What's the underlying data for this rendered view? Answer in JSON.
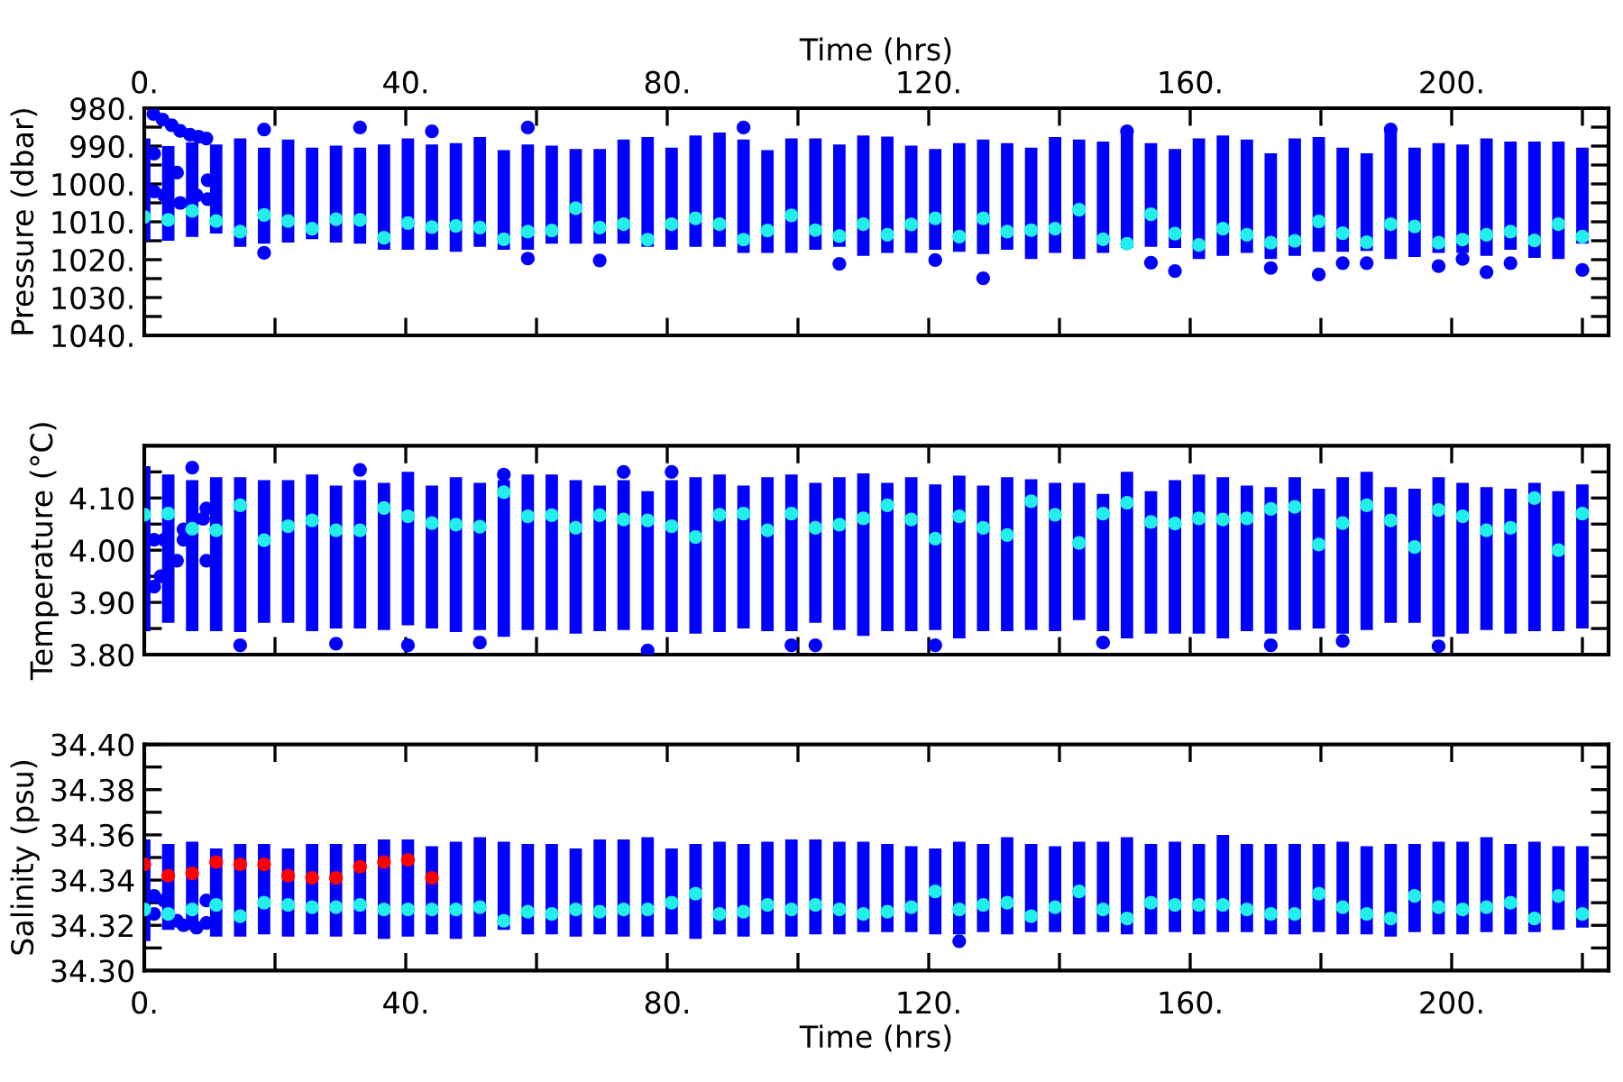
{
  "chart_data": [
    {
      "type": "bar",
      "ylabel": "Pressure (dbar)",
      "x2label": "Time (hrs)",
      "x": [
        0,
        3.67,
        7.33,
        11,
        14.67,
        18.33,
        22,
        25.67,
        29.33,
        33,
        36.67,
        40.33,
        44,
        47.67,
        51.33,
        55,
        58.67,
        62.33,
        66,
        69.67,
        73.33,
        77,
        80.67,
        84.33,
        88,
        91.67,
        95.33,
        99,
        102.67,
        106.33,
        110,
        113.67,
        117.33,
        121,
        124.67,
        128.33,
        132,
        135.67,
        139.33,
        143,
        146.67,
        150.33,
        154,
        157.67,
        161.33,
        165,
        168.67,
        172.33,
        176,
        179.67,
        183.33,
        187,
        190.67,
        194.33,
        198,
        201.67,
        205.33,
        209,
        212.67,
        216.33,
        220
      ],
      "xlim": [
        0,
        224
      ],
      "ylim": [
        1040,
        980
      ],
      "xticks": [
        {
          "value": 0,
          "label": null
        },
        {
          "value": 20,
          "label": null
        },
        {
          "value": 40,
          "label": null
        },
        {
          "value": 60,
          "label": null
        },
        {
          "value": 80,
          "label": null
        },
        {
          "value": 100,
          "label": null
        },
        {
          "value": 120,
          "label": null
        },
        {
          "value": 140,
          "label": null
        },
        {
          "value": 160,
          "label": null
        },
        {
          "value": 180,
          "label": null
        },
        {
          "value": 200,
          "label": null
        },
        {
          "value": 220,
          "label": null
        }
      ],
      "x2lim": [
        0,
        224
      ],
      "tick_labels": "y",
      "x2ticks": [
        {
          "value": 0,
          "label": "0."
        },
        {
          "value": 20,
          "label": null
        },
        {
          "value": 40,
          "label": "40."
        },
        {
          "value": 60,
          "label": null
        },
        {
          "value": 80,
          "label": "80."
        },
        {
          "value": 100,
          "label": null
        },
        {
          "value": 120,
          "label": "120."
        },
        {
          "value": 140,
          "label": null
        },
        {
          "value": 160,
          "label": "160."
        },
        {
          "value": 180,
          "label": null
        },
        {
          "value": 200,
          "label": "200."
        },
        {
          "value": 220,
          "label": null
        }
      ],
      "yticks": [
        {
          "value": 980,
          "label": "980."
        },
        {
          "value": 985,
          "label": null
        },
        {
          "value": 990,
          "label": "990."
        },
        {
          "value": 995,
          "label": null
        },
        {
          "value": 1000,
          "label": "1000."
        },
        {
          "value": 1005,
          "label": null
        },
        {
          "value": 1010,
          "label": "1010."
        },
        {
          "value": 1015,
          "label": null
        },
        {
          "value": 1020,
          "label": "1020."
        },
        {
          "value": 1025,
          "label": null
        },
        {
          "value": 1030,
          "label": "1030."
        },
        {
          "value": 1035,
          "label": null
        },
        {
          "value": 1040,
          "label": "1040."
        }
      ],
      "marker": "circle",
      "series": [
        {
          "color": "#0000ff",
          "base": [
            988,
            990,
            989,
            989.6,
            988.0,
            990.4,
            988.3,
            990.4,
            989.9,
            990.4,
            989.6,
            988.0,
            989.6,
            989.2,
            987.6,
            991.1,
            989.6,
            989.9,
            990.8,
            990.8,
            988.3,
            987.6,
            990.4,
            987.2,
            986.4,
            988.3,
            991.1,
            988.0,
            988.0,
            989.6,
            987.2,
            987.5,
            989.9,
            990.8,
            989.2,
            988.3,
            989.2,
            990.4,
            987.6,
            988.3,
            988.8,
            985.6,
            989.2,
            990.8,
            988.0,
            987.2,
            988.3,
            991.9,
            988.0,
            987.6,
            990.4,
            991.9,
            986.4,
            990.4,
            989.2,
            989.6,
            988.0,
            988.8,
            988.8,
            988.8,
            990.4
          ],
          "values": [
            27,
            25,
            25,
            23.5,
            28.6,
            25.4,
            27.2,
            24.2,
            25.6,
            25.4,
            27.8,
            29.4,
            27.8,
            28.7,
            29.0,
            26.3,
            27.8,
            25.9,
            25.0,
            25.0,
            27.5,
            29.0,
            27.0,
            29.4,
            30.2,
            29.9,
            27.1,
            30.2,
            29.4,
            27.0,
            31.8,
            30.7,
            28.3,
            26.6,
            28.7,
            30.2,
            28.2,
            29.4,
            30.6,
            31.5,
            29.4,
            31.3,
            27.4,
            26.1,
            31.8,
            31.8,
            29.9,
            27.9,
            31.0,
            30.3,
            27.5,
            25.8,
            33.4,
            28.9,
            29.0,
            28.6,
            31.0,
            28.6,
            30.7,
            31.0,
            25.4
          ]
        },
        {
          "type": "scatter",
          "color": "#0000ff",
          "x": [
            1.4,
            2.8,
            4.2,
            5.5,
            7,
            8.3,
            9.5,
            9.7,
            9.7,
            1.5,
            3,
            5.5,
            8,
            1.5,
            5,
            18.33,
            33,
            44,
            58.67,
            91.67,
            150.33,
            190.67,
            18.33,
            58.67,
            69.67,
            106.33,
            121,
            128.33,
            154,
            157.67,
            172.33,
            179.67,
            183.33,
            187,
            198,
            201.67,
            205.33,
            209,
            220
          ],
          "values": [
            981.5,
            983,
            984.5,
            986,
            987,
            987.5,
            988,
            999,
            1004,
            1002,
            1003,
            1005,
            1003,
            992,
            997,
            985.6,
            985.1,
            986.1,
            985.1,
            985.1,
            986.1,
            985.6,
            1018.2,
            1019.7,
            1020.2,
            1021.1,
            1020.1,
            1024.9,
            1020.8,
            1023.0,
            1022.2,
            1023.9,
            1020.9,
            1020.9,
            1021.7,
            1019.8,
            1023.3,
            1020.9,
            1022.7
          ]
        },
        {
          "type": "scatter",
          "color": "#22eeee",
          "values": [
            1008.7,
            1009.5,
            1007.1,
            1009.8,
            1012.6,
            1008.2,
            1009.8,
            1011.8,
            1009.3,
            1009.5,
            1014.2,
            1010.3,
            1011.4,
            1011.1,
            1011.5,
            1014.6,
            1012.6,
            1012.3,
            1006.4,
            1011.5,
            1010.6,
            1014.7,
            1010.6,
            1009.1,
            1010.6,
            1014.7,
            1012.3,
            1008.3,
            1012.2,
            1013.8,
            1010.6,
            1013.4,
            1010.7,
            1009.1,
            1013.9,
            1009.1,
            1012.6,
            1012.2,
            1011.8,
            1006.8,
            1014.6,
            1015.8,
            1008.0,
            1013.1,
            1016.1,
            1011.8,
            1013.4,
            1015.5,
            1015.0,
            1009.9,
            1013.0,
            1015.4,
            1010.6,
            1011.2,
            1015.5,
            1014.7,
            1013.4,
            1012.6,
            1014.9,
            1010.6,
            1013.9
          ]
        }
      ]
    },
    {
      "type": "bar",
      "ylabel": "Temperature (°C)",
      "x": [
        0,
        3.67,
        7.33,
        11,
        14.67,
        18.33,
        22,
        25.67,
        29.33,
        33,
        36.67,
        40.33,
        44,
        47.67,
        51.33,
        55,
        58.67,
        62.33,
        66,
        69.67,
        73.33,
        77,
        80.67,
        84.33,
        88,
        91.67,
        95.33,
        99,
        102.67,
        106.33,
        110,
        113.67,
        117.33,
        121,
        124.67,
        128.33,
        132,
        135.67,
        139.33,
        143,
        146.67,
        150.33,
        154,
        157.67,
        161.33,
        165,
        168.67,
        172.33,
        176,
        179.67,
        183.33,
        187,
        190.67,
        194.33,
        198,
        201.67,
        205.33,
        209,
        212.67,
        216.33,
        220
      ],
      "xlim": [
        0,
        224
      ],
      "ylim": [
        3.8,
        4.2
      ],
      "tick_labels": "y",
      "xticks": [
        {
          "value": 0,
          "label": null
        },
        {
          "value": 20,
          "label": null
        },
        {
          "value": 40,
          "label": null
        },
        {
          "value": 60,
          "label": null
        },
        {
          "value": 80,
          "label": null
        },
        {
          "value": 100,
          "label": null
        },
        {
          "value": 120,
          "label": null
        },
        {
          "value": 140,
          "label": null
        },
        {
          "value": 160,
          "label": null
        },
        {
          "value": 180,
          "label": null
        },
        {
          "value": 200,
          "label": null
        },
        {
          "value": 220,
          "label": null
        }
      ],
      "yticks": [
        {
          "value": 3.8,
          "label": "3.80"
        },
        {
          "value": 3.85,
          "label": null
        },
        {
          "value": 3.9,
          "label": "3.90"
        },
        {
          "value": 3.95,
          "label": null
        },
        {
          "value": 4.0,
          "label": "4.00"
        },
        {
          "value": 4.05,
          "label": null
        },
        {
          "value": 4.1,
          "label": "4.10"
        },
        {
          "value": 4.15,
          "label": null
        },
        {
          "value": 4.2,
          "label": null
        }
      ],
      "marker": "circle",
      "series": [
        {
          "color": "#0000ff",
          "base": [
            3.845,
            3.861,
            3.845,
            3.845,
            3.843,
            3.861,
            3.861,
            3.845,
            3.85,
            3.85,
            3.847,
            3.856,
            3.85,
            3.843,
            3.847,
            3.834,
            3.847,
            3.847,
            3.84,
            3.845,
            3.847,
            3.847,
            3.843,
            3.84,
            3.843,
            3.85,
            3.845,
            3.845,
            3.861,
            3.847,
            3.836,
            3.845,
            3.845,
            3.847,
            3.831,
            3.845,
            3.845,
            3.847,
            3.845,
            3.866,
            3.845,
            3.831,
            3.84,
            3.84,
            3.84,
            3.831,
            3.845,
            3.84,
            3.847,
            3.85,
            3.84,
            3.847,
            3.861,
            3.861,
            3.834,
            3.84,
            3.847,
            3.84,
            3.845,
            3.845,
            3.85
          ],
          "values": [
            0.316,
            0.284,
            0.289,
            0.295,
            0.297,
            0.273,
            0.273,
            0.3,
            0.274,
            0.284,
            0.282,
            0.294,
            0.274,
            0.297,
            0.282,
            0.3,
            0.298,
            0.298,
            0.294,
            0.279,
            0.287,
            0.266,
            0.291,
            0.3,
            0.302,
            0.274,
            0.295,
            0.3,
            0.268,
            0.293,
            0.311,
            0.284,
            0.295,
            0.279,
            0.312,
            0.279,
            0.295,
            0.289,
            0.284,
            0.263,
            0.263,
            0.319,
            0.273,
            0.294,
            0.305,
            0.309,
            0.279,
            0.281,
            0.293,
            0.268,
            0.3,
            0.303,
            0.26,
            0.257,
            0.306,
            0.289,
            0.274,
            0.278,
            0.284,
            0.268,
            0.276
          ]
        },
        {
          "type": "scatter",
          "color": "#0000ff",
          "x": [
            1.5,
            2.5,
            4,
            5,
            6,
            7,
            9,
            9.5,
            9.5,
            1.5,
            3,
            6,
            7.33,
            33,
            55,
            80.67,
            73.33,
            14.67,
            29.33,
            40.33,
            51.33,
            77,
            99,
            102.67,
            121,
            146.67,
            172.33,
            183.33,
            198
          ],
          "values": [
            3.93,
            3.95,
            null,
            3.98,
            4.02,
            null,
            4.06,
            4.08,
            3.98,
            4.02,
            4.02,
            4.04,
            4.158,
            4.154,
            4.145,
            4.15,
            4.15,
            3.818,
            3.821,
            3.818,
            3.823,
            3.808,
            3.818,
            3.818,
            3.818,
            3.823,
            3.818,
            3.826,
            3.816
          ]
        },
        {
          "type": "scatter",
          "color": "#22eeee",
          "values": [
            4.068,
            4.07,
            4.041,
            4.038,
            4.086,
            4.019,
            4.046,
            4.057,
            4.038,
            4.038,
            4.081,
            4.065,
            4.052,
            4.049,
            4.045,
            4.111,
            4.065,
            4.067,
            4.043,
            4.067,
            4.059,
            4.057,
            4.046,
            4.025,
            4.068,
            4.07,
            4.038,
            4.07,
            4.043,
            4.049,
            4.061,
            4.086,
            4.059,
            4.022,
            4.065,
            4.043,
            4.029,
            4.094,
            4.068,
            4.014,
            4.07,
            4.091,
            4.054,
            4.051,
            4.061,
            4.059,
            4.061,
            4.079,
            4.083,
            4.011,
            4.052,
            4.086,
            4.057,
            4.006,
            4.077,
            4.065,
            4.038,
            4.043,
            4.1,
            4.0,
            4.07
          ]
        }
      ]
    },
    {
      "type": "bar",
      "ylabel": "Salinity (psu)",
      "xlabel": "Time (hrs)",
      "x": [
        0,
        3.67,
        7.33,
        11,
        14.67,
        18.33,
        22,
        25.67,
        29.33,
        33,
        36.67,
        40.33,
        44,
        47.67,
        51.33,
        55,
        58.67,
        62.33,
        66,
        69.67,
        73.33,
        77,
        80.67,
        84.33,
        88,
        91.67,
        95.33,
        99,
        102.67,
        106.33,
        110,
        113.67,
        117.33,
        121,
        124.67,
        128.33,
        132,
        135.67,
        139.33,
        143,
        146.67,
        150.33,
        154,
        157.67,
        161.33,
        165,
        168.67,
        172.33,
        176,
        179.67,
        183.33,
        187,
        190.67,
        194.33,
        198,
        201.67,
        205.33,
        209,
        212.67,
        216.33,
        220
      ],
      "xlim": [
        0,
        224
      ],
      "ylim": [
        34.3,
        34.4
      ],
      "xticks": [
        {
          "value": 0,
          "label": "0."
        },
        {
          "value": 20,
          "label": null
        },
        {
          "value": 40,
          "label": "40."
        },
        {
          "value": 60,
          "label": null
        },
        {
          "value": 80,
          "label": "80."
        },
        {
          "value": 100,
          "label": null
        },
        {
          "value": 120,
          "label": "120."
        },
        {
          "value": 140,
          "label": null
        },
        {
          "value": 160,
          "label": "160."
        },
        {
          "value": 180,
          "label": null
        },
        {
          "value": 200,
          "label": "200."
        },
        {
          "value": 220,
          "label": null
        }
      ],
      "yticks": [
        {
          "value": 34.3,
          "label": "34.30"
        },
        {
          "value": 34.31,
          "label": null
        },
        {
          "value": 34.32,
          "label": "34.32"
        },
        {
          "value": 34.33,
          "label": null
        },
        {
          "value": 34.34,
          "label": "34.34"
        },
        {
          "value": 34.35,
          "label": null
        },
        {
          "value": 34.36,
          "label": "34.36"
        },
        {
          "value": 34.37,
          "label": null
        },
        {
          "value": 34.38,
          "label": "34.38"
        },
        {
          "value": 34.39,
          "label": null
        },
        {
          "value": 34.4,
          "label": "34.40"
        }
      ],
      "marker": "circle",
      "series": [
        {
          "color": "#0000ff",
          "base": [
            34.313,
            34.318,
            34.318,
            34.315,
            34.315,
            34.316,
            34.315,
            34.316,
            34.315,
            34.316,
            34.314,
            34.315,
            34.316,
            34.314,
            34.315,
            34.318,
            34.316,
            34.316,
            34.315,
            34.316,
            34.315,
            34.315,
            34.316,
            34.314,
            34.316,
            34.315,
            34.316,
            34.315,
            34.316,
            34.316,
            34.317,
            34.317,
            34.317,
            34.316,
            34.316,
            34.317,
            34.316,
            34.317,
            34.317,
            34.316,
            34.317,
            34.316,
            34.316,
            34.317,
            34.316,
            34.317,
            34.317,
            34.316,
            34.316,
            34.317,
            34.316,
            34.316,
            34.315,
            34.317,
            34.316,
            34.316,
            34.317,
            34.316,
            34.317,
            34.318,
            34.319
          ],
          "values": [
            0.045,
            0.038,
            0.039,
            0.039,
            0.041,
            0.04,
            0.039,
            0.04,
            0.041,
            0.04,
            0.044,
            0.043,
            0.039,
            0.043,
            0.044,
            0.039,
            0.04,
            0.04,
            0.039,
            0.042,
            0.043,
            0.044,
            0.038,
            0.042,
            0.041,
            0.041,
            0.041,
            0.043,
            0.042,
            0.041,
            0.04,
            0.039,
            0.038,
            0.038,
            0.041,
            0.039,
            0.043,
            0.039,
            0.038,
            0.041,
            0.04,
            0.043,
            0.04,
            0.04,
            0.04,
            0.043,
            0.039,
            0.04,
            0.04,
            0.039,
            0.041,
            0.039,
            0.041,
            0.039,
            0.041,
            0.041,
            0.042,
            0.04,
            0.04,
            0.037,
            0.036
          ]
        },
        {
          "type": "scatter",
          "color": "#0000ff",
          "x": [
            1.5,
            3,
            5,
            6,
            8,
            9.5,
            9.5,
            1.5,
            124.67
          ],
          "values": [
            34.333,
            34.331,
            34.322,
            34.32,
            34.319,
            34.321,
            34.331,
            34.325,
            34.313
          ]
        },
        {
          "type": "scatter",
          "color": "#22eeee",
          "values": [
            34.327,
            34.325,
            34.327,
            34.329,
            34.324,
            34.33,
            34.329,
            34.328,
            34.328,
            34.329,
            34.327,
            34.327,
            34.327,
            34.327,
            34.328,
            34.322,
            34.326,
            34.325,
            34.327,
            34.326,
            34.327,
            34.327,
            34.33,
            34.334,
            34.325,
            34.326,
            34.329,
            34.327,
            34.329,
            34.327,
            34.325,
            34.326,
            34.328,
            34.335,
            34.327,
            34.329,
            34.33,
            34.324,
            34.328,
            34.335,
            34.327,
            34.323,
            34.33,
            34.329,
            34.329,
            34.329,
            34.327,
            34.325,
            34.325,
            34.334,
            34.328,
            34.325,
            34.323,
            34.333,
            34.328,
            34.327,
            34.328,
            34.33,
            34.323,
            34.333,
            34.325
          ]
        },
        {
          "type": "scatter",
          "color": "#ff0000",
          "x": [
            0,
            3.67,
            7.33,
            11,
            14.67,
            18.33,
            22,
            25.67,
            29.33,
            33,
            36.67,
            40.33,
            44
          ],
          "values": [
            34.347,
            34.342,
            34.343,
            34.348,
            34.347,
            34.347,
            34.342,
            34.341,
            34.341,
            34.346,
            34.348,
            34.349,
            34.341
          ]
        }
      ]
    }
  ]
}
